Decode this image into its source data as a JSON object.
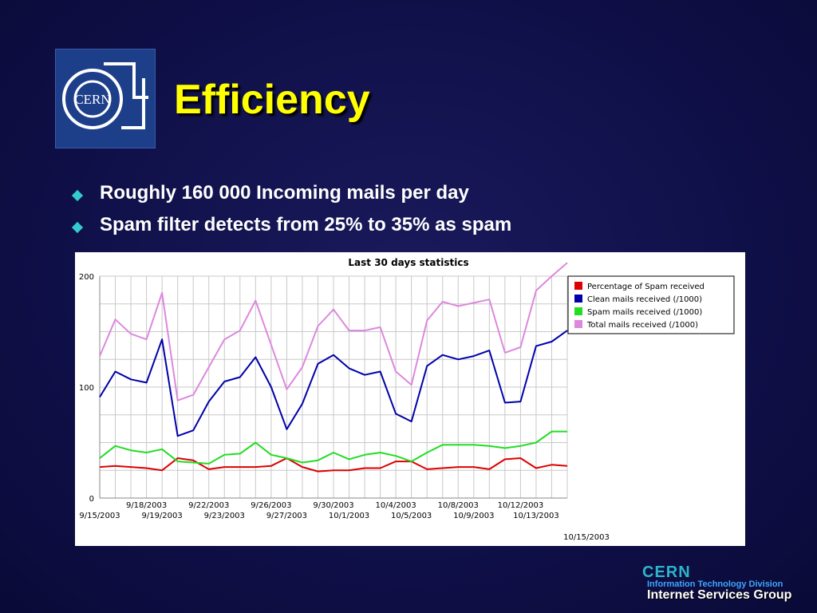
{
  "slide": {
    "title": "Efficiency",
    "bullets": [
      "Roughly 160 000 Incoming mails per day",
      "Spam filter detects from 25% to 35% as spam"
    ],
    "logo_text": "CERN",
    "footer": {
      "org": "CERN",
      "division": "Information Technology Division",
      "group": "Internet Services Group"
    },
    "colors": {
      "background": "#10104a",
      "title": "#ffff00",
      "bullet_diamond": "#33cccc",
      "text": "#ffffff"
    }
  },
  "chart_data": {
    "type": "line",
    "title": "Last 30 days statistics",
    "xlabel": "",
    "ylabel": "",
    "ylim": [
      0,
      200
    ],
    "y_ticks": [
      "0",
      "100",
      "200"
    ],
    "grid": true,
    "legend_position": "top-right",
    "x_tick_labels_row1": [
      "9/18/2003",
      "9/22/2003",
      "9/26/2003",
      "9/30/2003",
      "10/4/2003",
      "10/8/2003",
      "10/12/2003"
    ],
    "x_tick_labels_row2": [
      "9/15/2003",
      "9/19/2003",
      "9/23/2003",
      "9/27/2003",
      "10/1/2003",
      "10/5/2003",
      "10/9/2003",
      "10/13/2003"
    ],
    "x_end_label": "10/15/2003",
    "x": [
      "9/15/2003",
      "9/16/2003",
      "9/17/2003",
      "9/18/2003",
      "9/19/2003",
      "9/20/2003",
      "9/21/2003",
      "9/22/2003",
      "9/23/2003",
      "9/24/2003",
      "9/25/2003",
      "9/26/2003",
      "9/27/2003",
      "9/28/2003",
      "9/29/2003",
      "9/30/2003",
      "10/1/2003",
      "10/2/2003",
      "10/3/2003",
      "10/4/2003",
      "10/5/2003",
      "10/6/2003",
      "10/7/2003",
      "10/8/2003",
      "10/9/2003",
      "10/10/2003",
      "10/11/2003",
      "10/12/2003",
      "10/13/2003",
      "10/14/2003",
      "10/15/2003"
    ],
    "series": [
      {
        "name": "Percentage of Spam received",
        "color": "#dd0000",
        "values": [
          28,
          29,
          28,
          27,
          25,
          36,
          34,
          26,
          28,
          28,
          28,
          29,
          36,
          28,
          24,
          25,
          25,
          27,
          27,
          33,
          33,
          26,
          27,
          28,
          28,
          26,
          35,
          36,
          27,
          30,
          29
        ]
      },
      {
        "name": "Clean mails received (/1000)",
        "color": "#0000aa",
        "values": [
          91,
          114,
          107,
          104,
          143,
          56,
          61,
          87,
          105,
          109,
          127,
          100,
          62,
          85,
          121,
          129,
          117,
          111,
          114,
          76,
          69,
          119,
          129,
          125,
          128,
          133,
          86,
          87,
          137,
          141,
          151
        ]
      },
      {
        "name": "Spam mails received (/1000)",
        "color": "#22dd22",
        "values": [
          36,
          47,
          43,
          41,
          44,
          33,
          32,
          31,
          39,
          40,
          50,
          39,
          36,
          32,
          34,
          41,
          35,
          39,
          41,
          38,
          33,
          41,
          48,
          48,
          48,
          47,
          45,
          47,
          50,
          60,
          60
        ]
      },
      {
        "name": "Total mails received (/1000)",
        "color": "#dd88dd",
        "values": [
          128,
          161,
          148,
          143,
          185,
          88,
          93,
          118,
          143,
          151,
          178,
          138,
          98,
          118,
          155,
          170,
          151,
          151,
          154,
          114,
          102,
          160,
          177,
          173,
          176,
          179,
          131,
          136,
          187,
          200,
          212
        ]
      }
    ]
  }
}
